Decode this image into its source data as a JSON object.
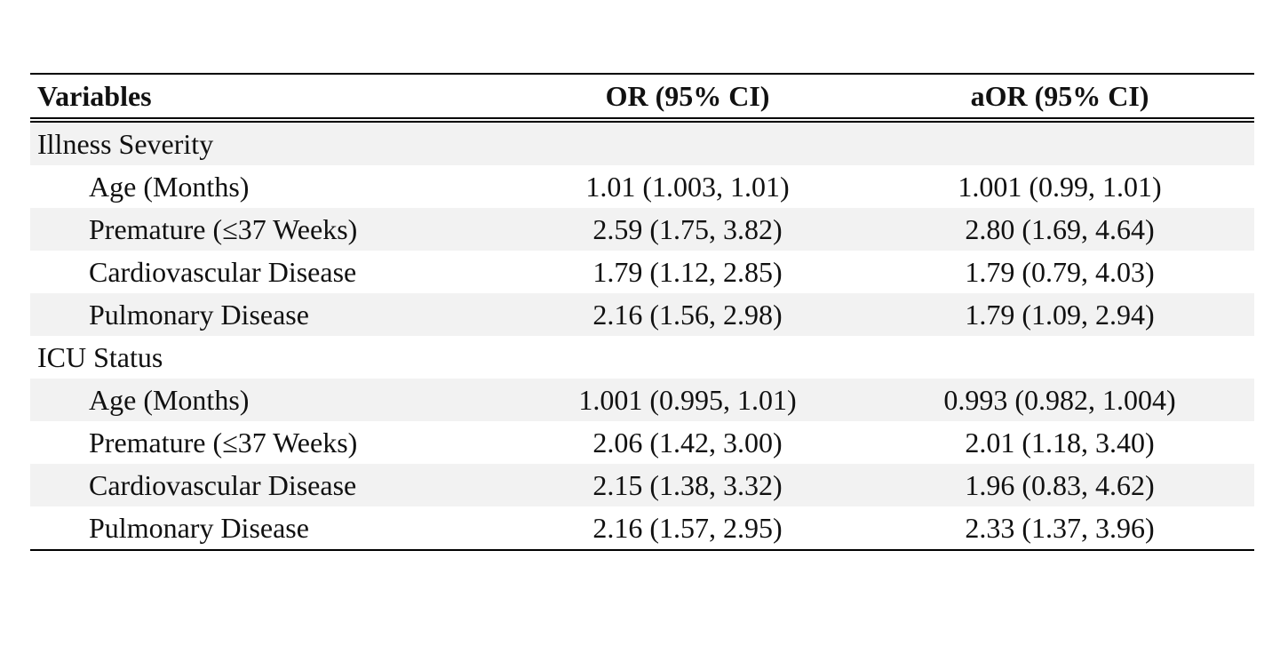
{
  "table": {
    "headers": {
      "variables": "Variables",
      "or": "OR (95% CI)",
      "aor": "aOR (95% CI)"
    },
    "sections": [
      {
        "title": "Illness Severity",
        "rows": [
          {
            "variable": "Age (Months)",
            "or": "1.01 (1.003, 1.01)",
            "aor": "1.001 (0.99, 1.01)"
          },
          {
            "variable": "Premature (≤37 Weeks)",
            "or": "2.59 (1.75, 3.82)",
            "aor": "2.80 (1.69, 4.64)"
          },
          {
            "variable": "Cardiovascular Disease",
            "or": "1.79 (1.12, 2.85)",
            "aor": "1.79 (0.79, 4.03)"
          },
          {
            "variable": "Pulmonary Disease",
            "or": "2.16 (1.56, 2.98)",
            "aor": "1.79 (1.09, 2.94)"
          }
        ]
      },
      {
        "title": "ICU Status",
        "rows": [
          {
            "variable": "Age (Months)",
            "or": "1.001 (0.995, 1.01)",
            "aor": "0.993 (0.982, 1.004)"
          },
          {
            "variable": "Premature (≤37 Weeks)",
            "or": "2.06 (1.42, 3.00)",
            "aor": "2.01 (1.18, 3.40)"
          },
          {
            "variable": "Cardiovascular Disease",
            "or": "2.15 (1.38, 3.32)",
            "aor": "1.96 (0.83, 4.62)"
          },
          {
            "variable": "Pulmonary Disease",
            "or": "2.16 (1.57, 2.95)",
            "aor": "2.33 (1.37, 3.96)"
          }
        ]
      }
    ]
  }
}
